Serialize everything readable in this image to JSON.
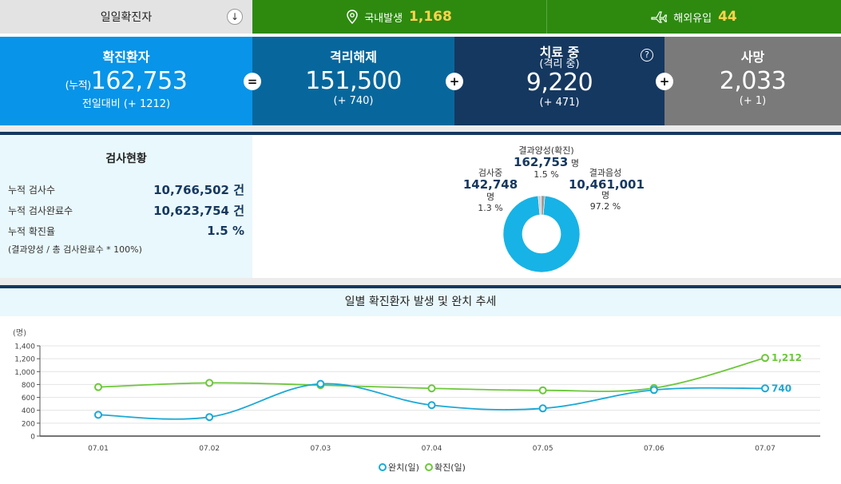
{
  "topbar": {
    "daily_label": "일일확진자",
    "download_icon": "arrow-down-icon",
    "domestic_label": "국내발생",
    "domestic_value": "1,168",
    "overseas_label": "해외유입",
    "overseas_value": "44"
  },
  "stats": {
    "confirmed": {
      "label": "확진환자",
      "prefix": "(누적)",
      "value": "162,753",
      "sub": "전일대비 (+ 1212)"
    },
    "released": {
      "label": "격리해제",
      "value": "151,500",
      "sub": "(+ 740)"
    },
    "treating": {
      "label": "치료 중",
      "label2": "(격리 중)",
      "value": "9,220",
      "sub": "(+ 471)"
    },
    "deaths": {
      "label": "사망",
      "value": "2,033",
      "sub": "(+ 1)"
    },
    "op_equals": "=",
    "op_plus": "+",
    "help": "?"
  },
  "tests": {
    "title": "검사현황",
    "rows": [
      {
        "label": "누적 검사수",
        "value": "10,766,502 건"
      },
      {
        "label": "누적 검사완료수",
        "value": "10,623,754 건"
      },
      {
        "label": "누적 확진율",
        "value": "1.5 %"
      }
    ],
    "note": "(결과양성 / 총 검사완료수 * 100%)",
    "donut": {
      "positive": {
        "label": "결과양성(확진)",
        "value": "162,753",
        "unit": "명",
        "pct": "1.5 %",
        "share": 1.5
      },
      "testing": {
        "label": "검사중",
        "value": "142,748",
        "unit": "명",
        "pct": "1.3 %",
        "share": 1.3
      },
      "negative": {
        "label": "결과음성",
        "value": "10,461,001",
        "unit": "명",
        "pct": "97.2 %",
        "share": 97.2
      },
      "colors": {
        "negative": "#17b3e6",
        "positive": "#9e9e9e",
        "testing": "#cfcfcf"
      }
    }
  },
  "chart_data": {
    "type": "line",
    "title": "일별 확진환자 발생 및 완치 추세",
    "ylabel": "(명)",
    "x": [
      "07.01",
      "07.02",
      "07.03",
      "07.04",
      "07.05",
      "07.06",
      "07.07"
    ],
    "ylim": [
      0,
      1400
    ],
    "yticks": [
      "0",
      "200",
      "400",
      "600",
      "800",
      "1,000",
      "1,200",
      "1,400"
    ],
    "ytick_values": [
      0,
      200,
      400,
      600,
      800,
      1000,
      1200,
      1400
    ],
    "series": [
      {
        "name": "완치(일)",
        "color": "#1ba9d6",
        "values": [
          330,
          295,
          810,
          480,
          430,
          715,
          740
        ],
        "end_label": "740"
      },
      {
        "name": "확진(일)",
        "color": "#6cc83a",
        "values": [
          760,
          825,
          790,
          740,
          710,
          745,
          1212
        ],
        "end_label": "1,212"
      }
    ],
    "grid": true,
    "legend": "bottom"
  }
}
